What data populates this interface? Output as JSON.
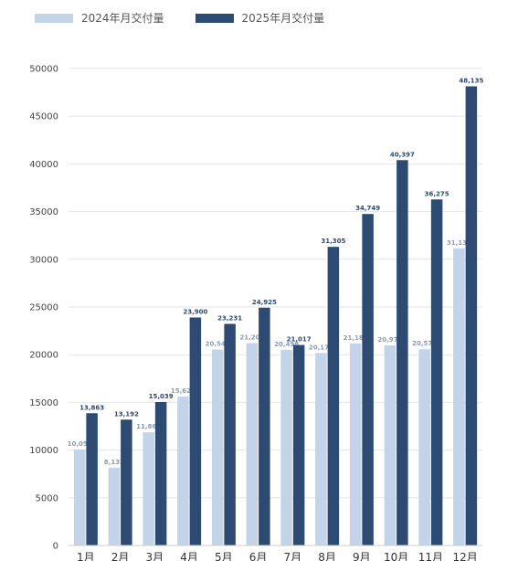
{
  "chart_data": {
    "type": "bar",
    "categories": [
      "1月",
      "2月",
      "3月",
      "4月",
      "5月",
      "6月",
      "7月",
      "8月",
      "9月",
      "10月",
      "11月",
      "12月"
    ],
    "series": [
      {
        "name": "2024年月交付量",
        "color": "#c3d3e8",
        "values": [
          10055,
          8132,
          11866,
          15620,
          20544,
          21209,
          20498,
          20176,
          21181,
          20976,
          20575,
          31138
        ],
        "labels": [
          "10,055",
          "8,132",
          "11,866",
          "15,620",
          "20,544",
          "21,209",
          "20,498",
          "20,176",
          "21,181",
          "20,976",
          "20,575",
          "31,138"
        ]
      },
      {
        "name": "2025年月交付量",
        "color": "#2d4a72",
        "values": [
          13863,
          13192,
          15039,
          23900,
          23231,
          24925,
          21017,
          31305,
          34749,
          40397,
          36275,
          48135
        ],
        "labels": [
          "13,863",
          "13,192",
          "15,039",
          "23,900",
          "23,231",
          "24,925",
          "21,017",
          "31,305",
          "34,749",
          "40,397",
          "36,275",
          "48,135"
        ]
      }
    ],
    "ylim": [
      0,
      50000
    ],
    "yticks": [
      0,
      5000,
      10000,
      15000,
      20000,
      25000,
      30000,
      35000,
      40000,
      45000,
      50000
    ],
    "grid": true,
    "legend_position": "top-left"
  }
}
